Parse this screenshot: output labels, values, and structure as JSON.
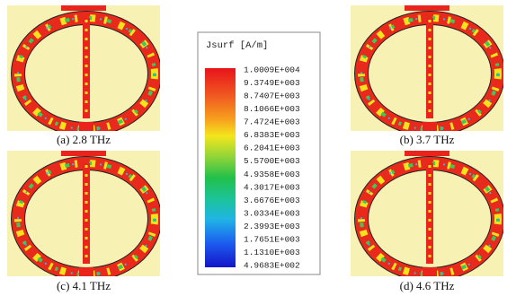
{
  "panels": [
    {
      "caption": "(a) 2.8 THz"
    },
    {
      "caption": "(b) 3.7 THz"
    },
    {
      "caption": "(c) 4.1 THz"
    },
    {
      "caption": "(d) 4.6 THz"
    }
  ],
  "legend": {
    "title": "Jsurf [A/m]",
    "labels": [
      "1.0009E+004",
      "9.3749E+003",
      "8.7407E+003",
      "8.1066E+003",
      "7.4724E+003",
      "6.8383E+003",
      "6.2041E+003",
      "5.5700E+003",
      "4.9358E+003",
      "4.3017E+003",
      "3.6676E+003",
      "3.0334E+003",
      "2.3993E+003",
      "1.7651E+003",
      "1.1310E+003",
      "4.9683E+002"
    ]
  }
}
